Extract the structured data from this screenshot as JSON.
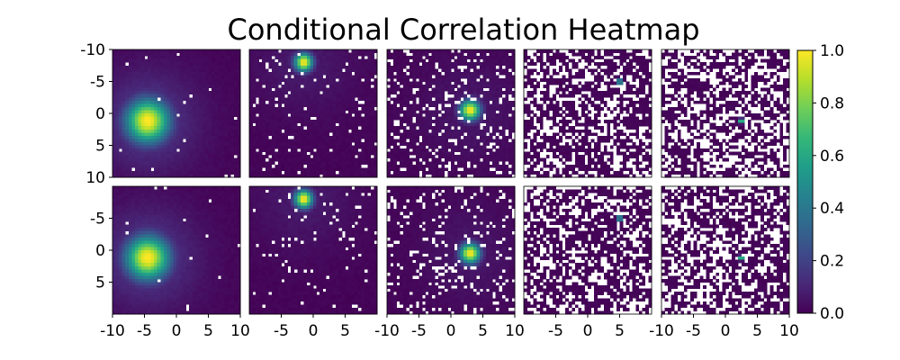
{
  "chart_data": {
    "type": "heatmap",
    "title": "Conditional Correlation Heatmap",
    "layout": {
      "rows": 2,
      "cols": 5
    },
    "xlim": [
      -10,
      10
    ],
    "ylim": [
      -10,
      10
    ],
    "y_inverted": true,
    "grid_size": 40,
    "colormap": "viridis",
    "colormap_stops": [
      "#440154",
      "#482878",
      "#3e4989",
      "#31688e",
      "#26828e",
      "#1f9e89",
      "#35b779",
      "#6ece58",
      "#b5de2b",
      "#fde725"
    ],
    "missing_color": "#ffffff",
    "colorbar": {
      "min": 0.0,
      "max": 1.0,
      "ticks": [
        0.0,
        0.2,
        0.4,
        0.6,
        0.8,
        1.0
      ],
      "tick_labels": [
        "0.0",
        "0.2",
        "0.4",
        "0.6",
        "0.8",
        "1.0"
      ]
    },
    "y_tick_labels": [
      {
        "values": [
          -10,
          -5,
          0,
          5,
          10
        ],
        "labels": [
          "-10",
          "-5",
          "0",
          "5",
          "10"
        ]
      },
      {
        "values": [
          -5,
          0,
          5
        ],
        "labels": [
          "-5",
          "0",
          "5"
        ]
      }
    ],
    "x_tick_labels": [
      {
        "values": [
          -10,
          -5,
          0,
          5,
          10
        ],
        "labels": [
          "-10",
          "-5",
          "0",
          "5",
          "10"
        ]
      },
      {
        "values": [
          -5,
          0,
          5
        ],
        "labels": [
          "-5",
          "0",
          "5"
        ]
      },
      {
        "values": [
          -10,
          -5,
          0,
          5,
          10
        ],
        "labels": [
          "-10",
          "-5",
          "0",
          "5",
          "10"
        ]
      },
      {
        "values": [
          -5,
          0,
          5
        ],
        "labels": [
          "-5",
          "0",
          "5"
        ]
      },
      {
        "values": [
          -10,
          -5,
          0,
          5,
          10
        ],
        "labels": [
          "-10",
          "-5",
          "0",
          "5",
          "10"
        ]
      }
    ],
    "panels": [
      {
        "row": 0,
        "col": 0,
        "peak": [
          -4.5,
          1.2
        ],
        "spread": 2.4,
        "halo": 0.16,
        "missing_fraction": 0.01,
        "seed": 11
      },
      {
        "row": 0,
        "col": 1,
        "peak": [
          -1.5,
          -8.0
        ],
        "spread": 1.0,
        "halo": 0.06,
        "missing_fraction": 0.05,
        "seed": 23
      },
      {
        "row": 0,
        "col": 2,
        "peak": [
          3.0,
          -0.5
        ],
        "spread": 1.1,
        "halo": 0.05,
        "missing_fraction": 0.14,
        "seed": 37
      },
      {
        "row": 0,
        "col": 3,
        "peak": [
          5.0,
          -5.0
        ],
        "spread": 0.25,
        "halo": 0.0,
        "missing_fraction": 0.38,
        "seed": 41
      },
      {
        "row": 0,
        "col": 4,
        "peak": [
          2.5,
          1.2
        ],
        "spread": 0.25,
        "halo": 0.0,
        "missing_fraction": 0.42,
        "seed": 53
      },
      {
        "row": 1,
        "col": 0,
        "peak": [
          -4.5,
          1.2
        ],
        "spread": 2.4,
        "halo": 0.16,
        "missing_fraction": 0.01,
        "seed": 67
      },
      {
        "row": 1,
        "col": 1,
        "peak": [
          -1.5,
          -8.0
        ],
        "spread": 1.0,
        "halo": 0.06,
        "missing_fraction": 0.05,
        "seed": 71
      },
      {
        "row": 1,
        "col": 2,
        "peak": [
          3.0,
          0.5
        ],
        "spread": 1.1,
        "halo": 0.05,
        "missing_fraction": 0.14,
        "seed": 83
      },
      {
        "row": 1,
        "col": 3,
        "peak": [
          5.0,
          -5.0
        ],
        "spread": 0.25,
        "halo": 0.0,
        "missing_fraction": 0.38,
        "seed": 97
      },
      {
        "row": 1,
        "col": 4,
        "peak": [
          2.5,
          1.2
        ],
        "spread": 0.25,
        "halo": 0.0,
        "missing_fraction": 0.42,
        "seed": 101
      }
    ]
  }
}
